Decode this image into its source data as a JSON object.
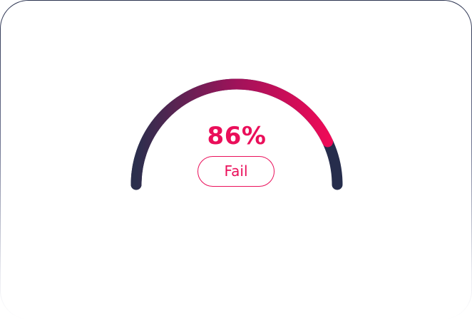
{
  "gauge": {
    "value_text": "86%",
    "value": 86,
    "status_label": "Fail",
    "colors": {
      "track": "#262d4c",
      "fill_start": "#2b2f4d",
      "fill_mid": "#a0125a",
      "fill_end": "#f50a57",
      "accent": "#ea0f5a"
    }
  }
}
